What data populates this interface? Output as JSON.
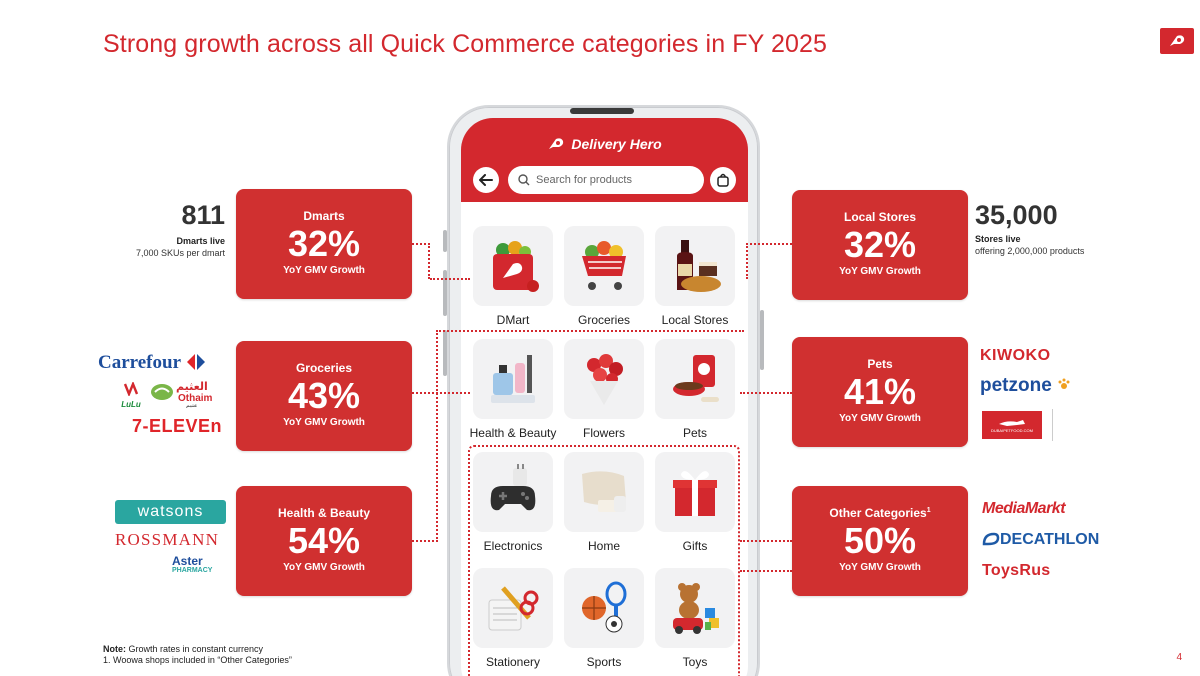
{
  "title": "Strong growth across all Quick Commerce categories in FY 2025",
  "colors": {
    "accent": "#d3282e",
    "card": "#d03030"
  },
  "cards": {
    "dmarts": {
      "name": "Dmarts",
      "pct": "32%",
      "label": "YoY GMV Growth"
    },
    "groceries": {
      "name": "Groceries",
      "pct": "43%",
      "label": "YoY GMV Growth"
    },
    "health": {
      "name": "Health & Beauty",
      "pct": "54%",
      "label": "YoY GMV Growth"
    },
    "local": {
      "name": "Local Stores",
      "pct": "32%",
      "label": "YoY GMV Growth"
    },
    "pets": {
      "name": "Pets",
      "pct": "41%",
      "label": "YoY GMV Growth"
    },
    "other": {
      "name": "Other Categories",
      "sup": "1",
      "pct": "50%",
      "label": "YoY GMV Growth"
    }
  },
  "stats": {
    "dmarts": {
      "big": "811",
      "bold": "Dmarts live",
      "small": "7,000 SKUs per dmart"
    },
    "local": {
      "big": "35,000",
      "bold": "Stores live",
      "small": "offering 2,000,000  products"
    }
  },
  "phone": {
    "brand": "Delivery Hero",
    "search_placeholder": "Search for products",
    "back_icon": "arrow-left-icon",
    "bag_icon": "shopping-bag-icon",
    "categories": [
      {
        "label": "DMart",
        "icon": "shopping-bag-icon"
      },
      {
        "label": "Groceries",
        "icon": "shopping-cart-icon"
      },
      {
        "label": "Local Stores",
        "icon": "wine-bread-icon"
      },
      {
        "label": "Health & Beauty",
        "icon": "perfume-icon"
      },
      {
        "label": "Flowers",
        "icon": "bouquet-icon"
      },
      {
        "label": "Pets",
        "icon": "pet-food-icon"
      },
      {
        "label": "Electronics",
        "icon": "gamepad-icon"
      },
      {
        "label": "Home",
        "icon": "pillow-icon"
      },
      {
        "label": "Gifts",
        "icon": "gift-box-icon"
      },
      {
        "label": "Stationery",
        "icon": "stationery-icon"
      },
      {
        "label": "Sports",
        "icon": "sports-balls-icon"
      },
      {
        "label": "Toys",
        "icon": "toys-icon"
      }
    ]
  },
  "partners": {
    "groceries": [
      "Carrefour",
      "Othaim",
      "7-ELEVEn"
    ],
    "health": [
      "watsons",
      "ROSSMANN",
      "Aster",
      "PHARMACY"
    ],
    "pets": [
      "KIWOKO",
      "petzone",
      "DUBAIPETFOOD.COM"
    ],
    "other": [
      "MediaMarkt",
      "DECATHLON",
      "ToysRus"
    ],
    "logo_text": {
      "lulu": "LuLu",
      "othaim_ar": "العثيم",
      "othaim_tag": "عثيم"
    }
  },
  "note": {
    "label": "Note:",
    "text": " Growth rates in constant currency",
    "footnote": "1. Woowa shops included in “Other Categories”"
  },
  "page_number": "4"
}
